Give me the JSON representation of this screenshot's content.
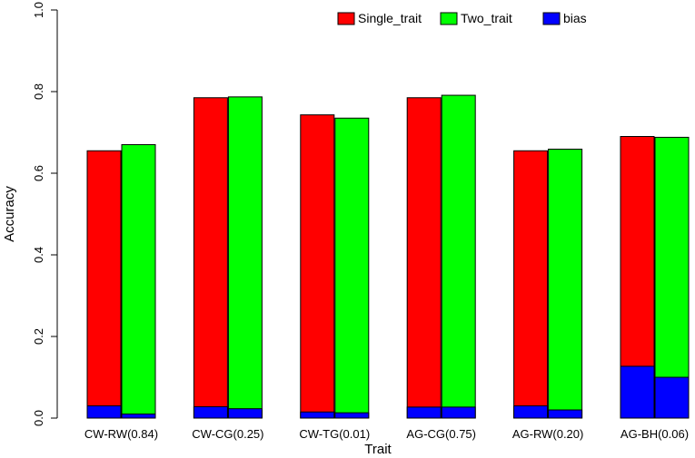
{
  "chart_data": {
    "type": "bar",
    "title": "",
    "xlabel": "Trait",
    "ylabel": "Accuracy",
    "ylim": [
      0,
      1
    ],
    "yticks": [
      "0.0",
      "0.2",
      "0.4",
      "0.6",
      "0.8",
      "1.0"
    ],
    "grid": false,
    "legend_position": "top-right",
    "categories": [
      "CW-RW(0.84)",
      "CW-CG(0.25)",
      "CW-TG(0.01)",
      "AG-CG(0.75)",
      "AG-RW(0.20)",
      "AG-BH(0.06)"
    ],
    "series": [
      {
        "name": "Single_trait",
        "color": "#ff0000",
        "values": [
          0.655,
          0.785,
          0.743,
          0.785,
          0.655,
          0.69
        ]
      },
      {
        "name": "Two_trait",
        "color": "#00ff00",
        "values": [
          0.67,
          0.787,
          0.735,
          0.791,
          0.659,
          0.688
        ]
      }
    ],
    "bias": {
      "name": "bias",
      "color": "#0000ff",
      "single_trait": [
        0.03,
        0.028,
        0.015,
        0.027,
        0.03,
        0.127
      ],
      "two_trait": [
        0.01,
        0.023,
        0.013,
        0.027,
        0.02,
        0.1
      ]
    }
  }
}
